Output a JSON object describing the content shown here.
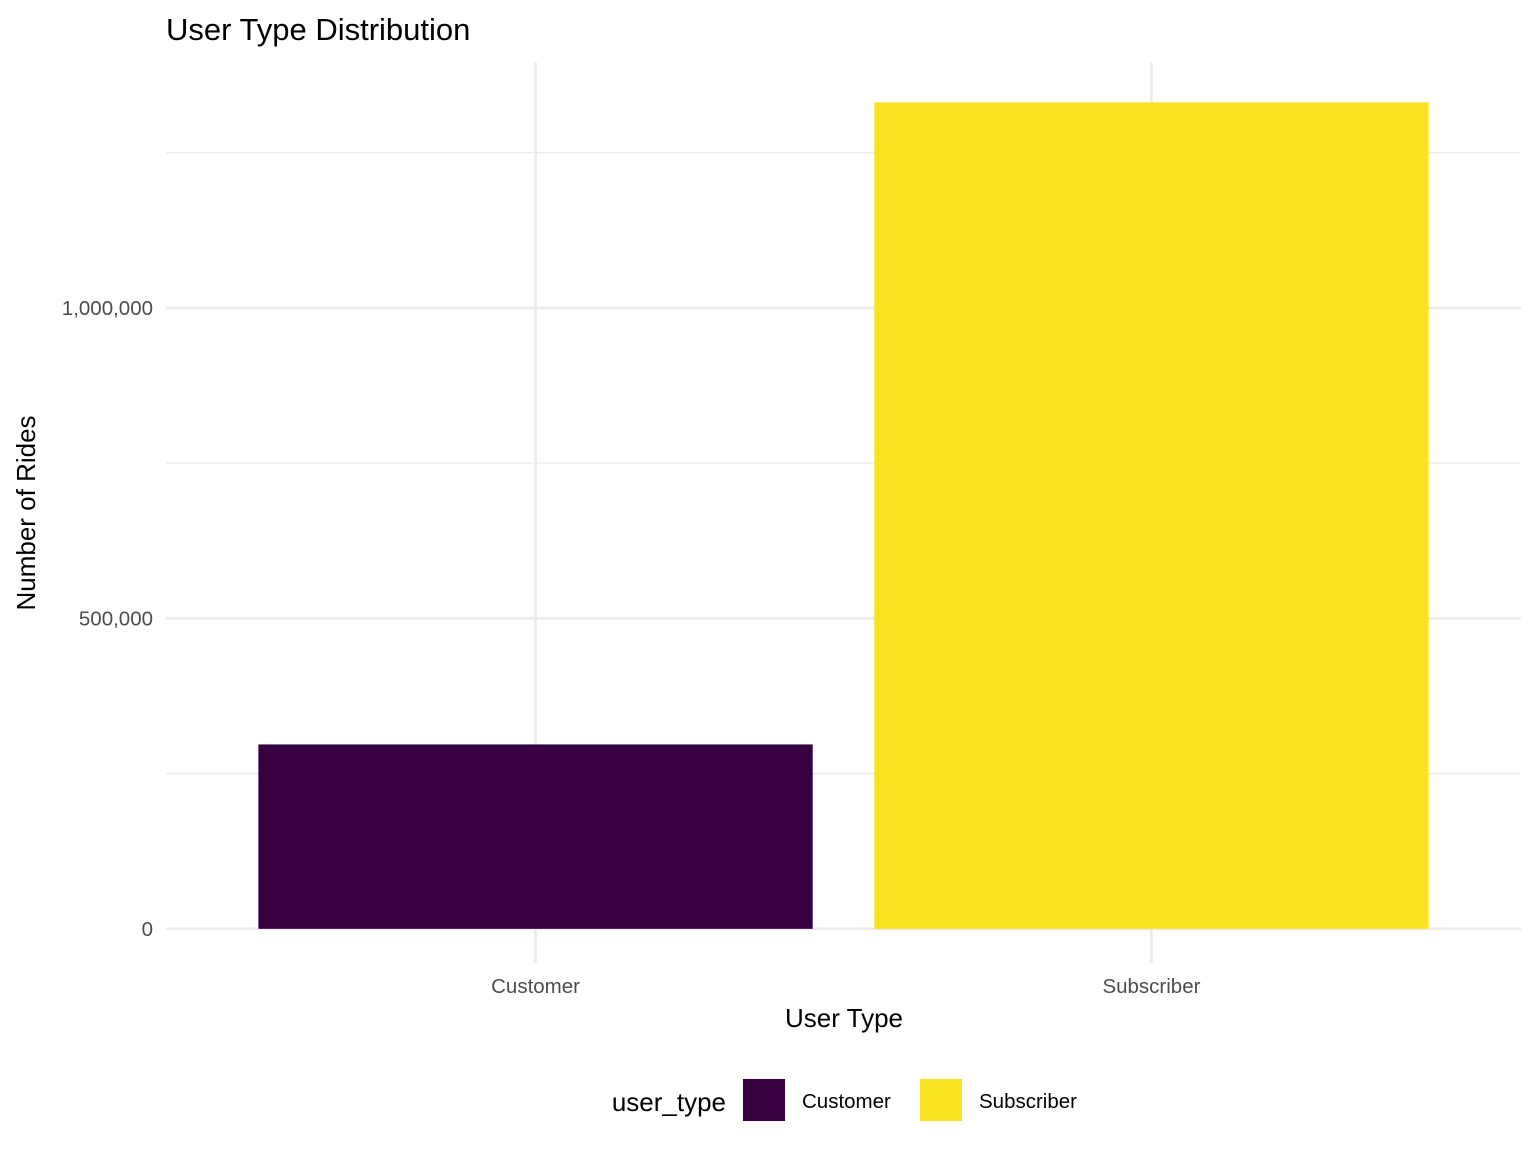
{
  "chart_data": {
    "type": "bar",
    "title": "User Type Distribution",
    "xlabel": "User Type",
    "ylabel": "Number of Rides",
    "categories": [
      "Customer",
      "Subscriber"
    ],
    "values": [
      297000,
      1331000
    ],
    "colors": [
      "#370040",
      "#fbe321"
    ],
    "ylim": [
      -55000,
      1396000
    ],
    "y_ticks": [
      0,
      500000,
      1000000
    ],
    "y_tick_labels": [
      "0",
      "500,000",
      "1,000,000"
    ],
    "y_minor_ticks": [
      250000,
      750000,
      1250000
    ],
    "grid": true,
    "legend": {
      "title": "user_type",
      "position": "bottom",
      "items": [
        {
          "label": "Customer",
          "color": "#370040"
        },
        {
          "label": "Subscriber",
          "color": "#fbe321"
        }
      ]
    }
  }
}
